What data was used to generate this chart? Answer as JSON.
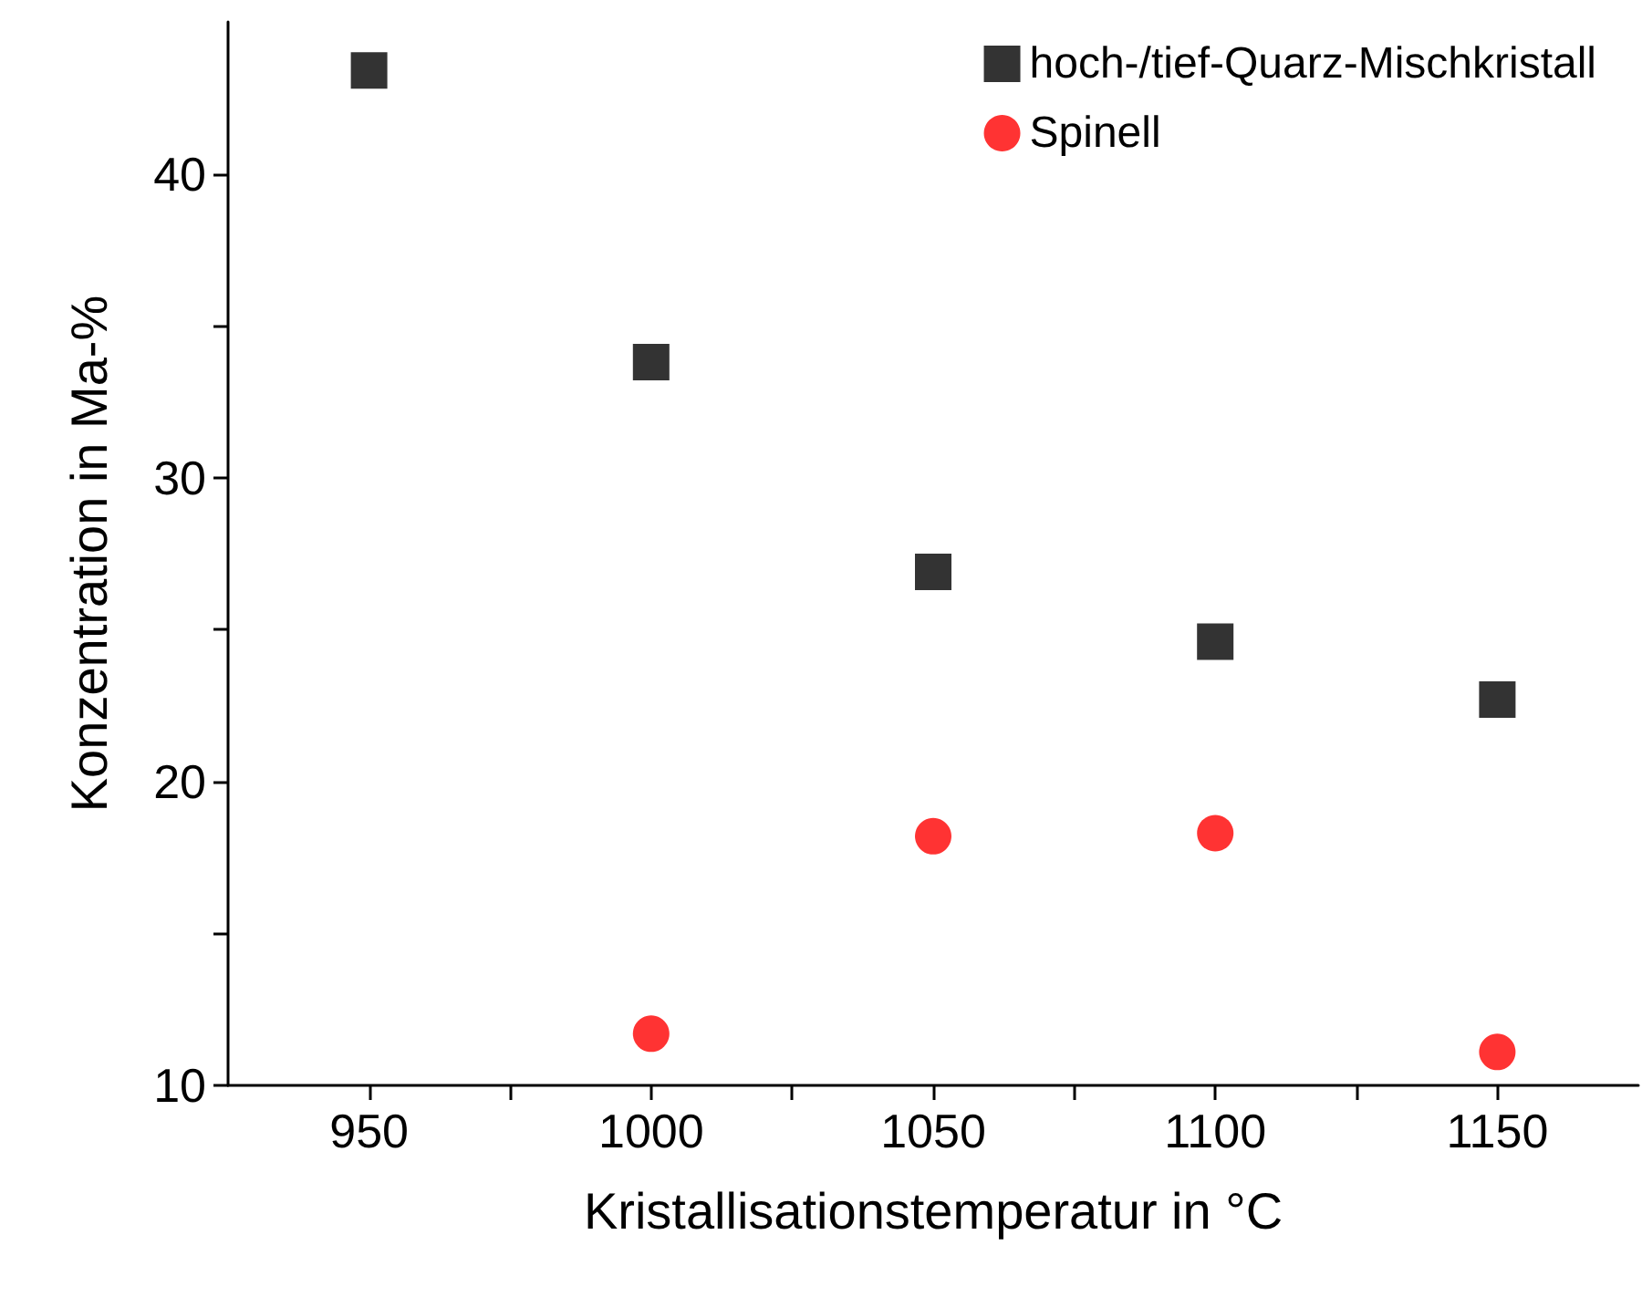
{
  "chart_data": {
    "type": "scatter",
    "xlabel": "Kristallisationstemperatur in °C",
    "ylabel": "Konzentration in Ma-%",
    "xlim": [
      925,
      1175
    ],
    "xticks": [
      950,
      {
        "value": 975,
        "label": null
      },
      1000,
      {
        "value": 1025,
        "label": null
      },
      1050,
      {
        "value": 1075,
        "label": null
      },
      1100,
      {
        "value": 1125,
        "label": null
      },
      1150
    ],
    "ylim": [
      10,
      45
    ],
    "yticks": [
      10,
      {
        "value": 15,
        "label": null
      },
      20,
      {
        "value": 25,
        "label": null
      },
      30,
      {
        "value": 35,
        "label": null
      },
      40
    ],
    "grid": false,
    "legend": "top right",
    "series": [
      {
        "name": "hoch-/tief-Quarz-Mischkristall",
        "color": "#000000",
        "marker": "square",
        "x": [
          950,
          1000,
          1050,
          1100,
          1150
        ],
        "values": [
          43.4,
          33.8,
          26.9,
          24.6,
          22.7
        ]
      },
      {
        "name": "Spinell",
        "color": "#ff0000",
        "marker": "circle",
        "x": [
          1000,
          1050,
          1100,
          1150
        ],
        "values": [
          11.7,
          18.2,
          18.3,
          11.1
        ]
      }
    ]
  }
}
